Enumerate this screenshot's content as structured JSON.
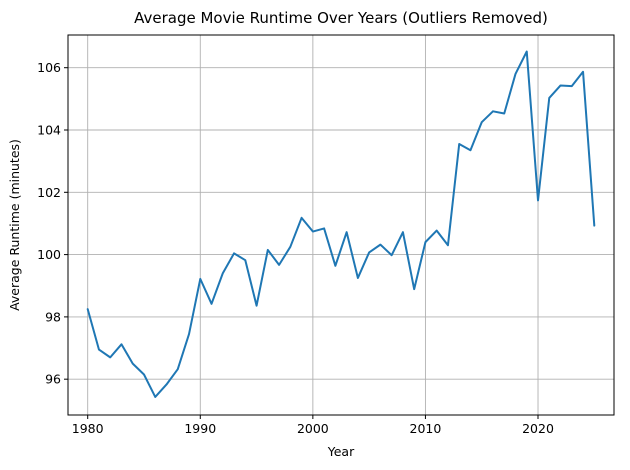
{
  "chart_data": {
    "type": "line",
    "title": "Average Movie Runtime Over Years (Outliers Removed)",
    "xlabel": "Year",
    "ylabel": "Average Runtime (minutes)",
    "xlim": [
      1978.25,
      2026.75
    ],
    "ylim": [
      94.85,
      107.05
    ],
    "xticks": [
      1980,
      1990,
      2000,
      2010,
      2020
    ],
    "yticks": [
      96,
      98,
      100,
      102,
      104,
      106
    ],
    "grid": true,
    "series": [
      {
        "color": "#1f77b4",
        "x": [
          1980,
          1981,
          1982,
          1983,
          1984,
          1985,
          1986,
          1987,
          1988,
          1989,
          1990,
          1991,
          1992,
          1993,
          1994,
          1995,
          1996,
          1997,
          1998,
          1999,
          2000,
          2001,
          2002,
          2003,
          2004,
          2005,
          2006,
          2007,
          2008,
          2009,
          2010,
          2011,
          2012,
          2013,
          2014,
          2015,
          2016,
          2017,
          2018,
          2019,
          2020,
          2021,
          2022,
          2023,
          2024,
          2025
        ],
        "y": [
          98.25,
          96.95,
          96.7,
          97.12,
          96.5,
          96.15,
          95.43,
          95.83,
          96.32,
          97.45,
          99.22,
          98.42,
          99.4,
          100.04,
          99.82,
          98.36,
          100.15,
          99.67,
          100.25,
          101.18,
          100.74,
          100.84,
          99.64,
          100.72,
          99.25,
          100.07,
          100.32,
          99.98,
          100.72,
          98.89,
          100.4,
          100.77,
          100.3,
          103.55,
          103.35,
          104.25,
          104.6,
          104.53,
          105.8,
          106.52,
          101.74,
          105.03,
          105.43,
          105.41,
          105.87,
          100.93
        ]
      }
    ]
  }
}
